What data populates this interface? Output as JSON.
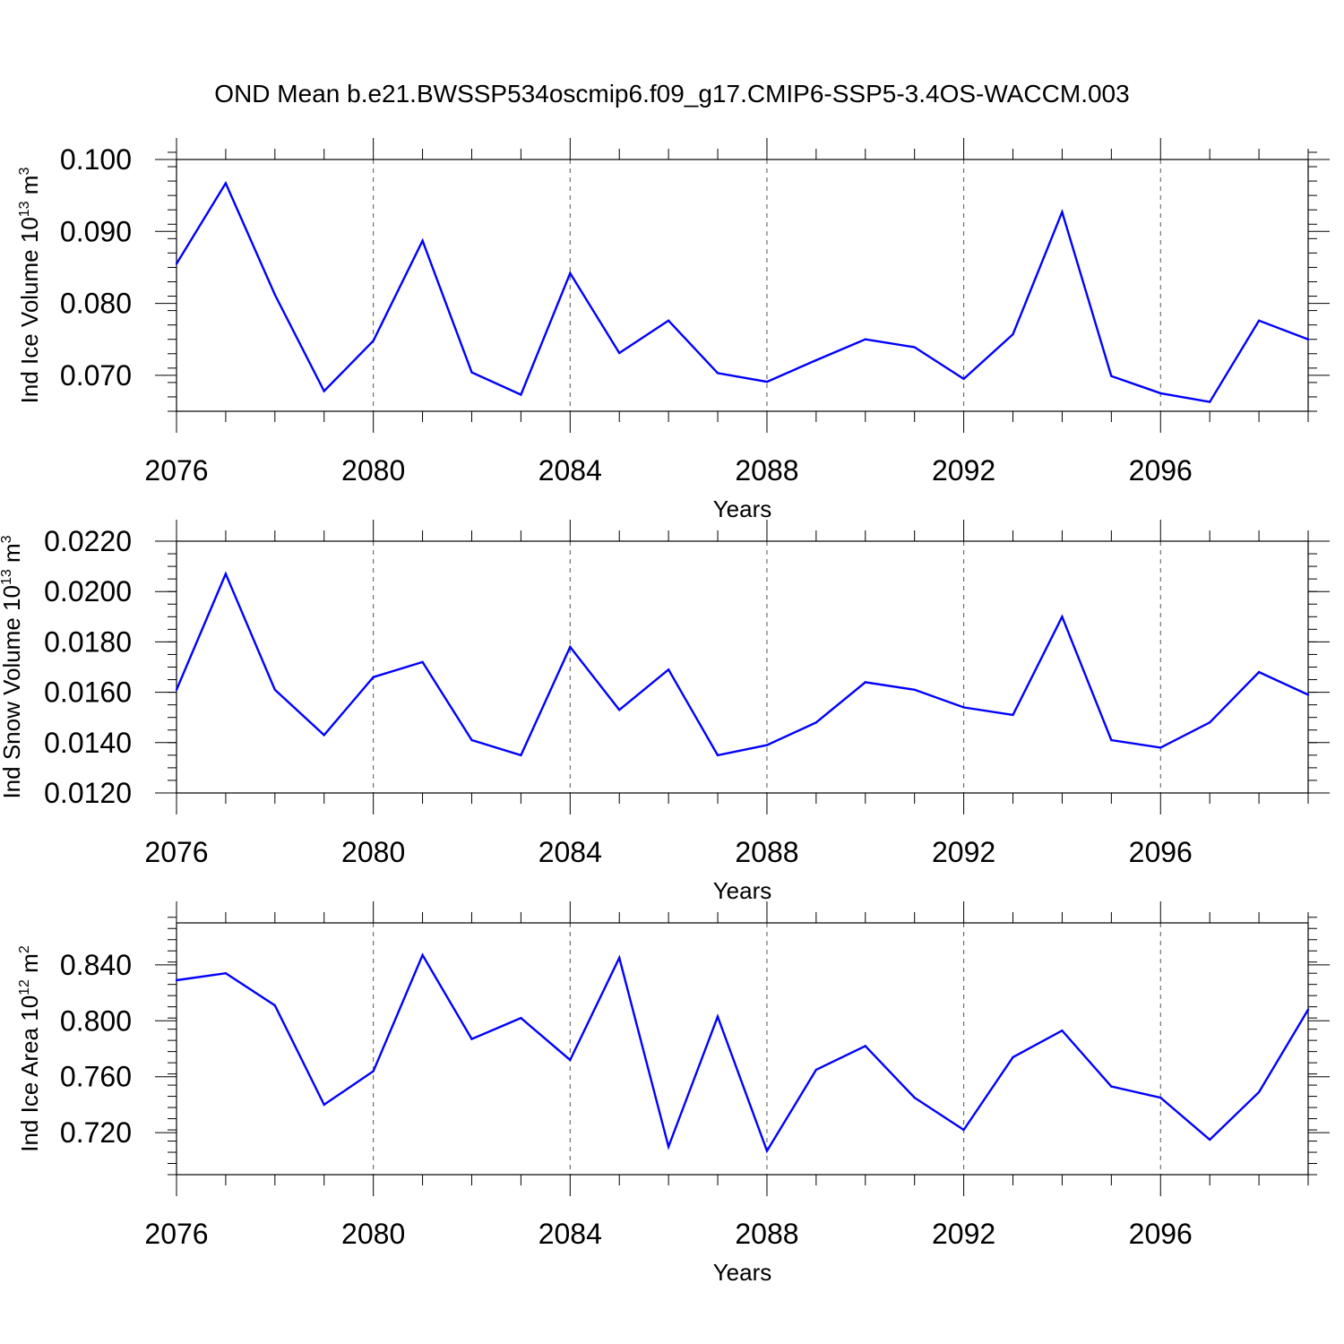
{
  "title": "OND Mean b.e21.BWSSP534oscmip6.f09_g17.CMIP6-SSP5-3.4OS-WACCM.003",
  "colors": {
    "series": "#0000ff",
    "axes": "#000000",
    "grid": "#555555"
  },
  "chart_data": [
    {
      "type": "line",
      "title": "",
      "xlabel": "Years",
      "ylabel": {
        "prefix": "Ind Ice Volume 10",
        "exp": "13",
        "unit": " m",
        "unit_exp": "3"
      },
      "x": [
        2076,
        2077,
        2078,
        2079,
        2080,
        2081,
        2082,
        2083,
        2084,
        2085,
        2086,
        2087,
        2088,
        2089,
        2090,
        2091,
        2092,
        2093,
        2094,
        2095,
        2096,
        2097,
        2098,
        2099
      ],
      "values": [
        0.0855,
        0.0967,
        0.0812,
        0.0678,
        0.0748,
        0.0887,
        0.0704,
        0.0673,
        0.0842,
        0.0731,
        0.0776,
        0.0703,
        0.0691,
        0.0721,
        0.075,
        0.0739,
        0.0695,
        0.0757,
        0.0927,
        0.0699,
        0.0675,
        0.0663,
        0.0776,
        0.075
      ],
      "xlim": [
        2076,
        2099
      ],
      "ylim": [
        0.065,
        0.1
      ],
      "xticks": [
        2076,
        2080,
        2084,
        2088,
        2092,
        2096
      ],
      "xtick_labels": [
        "2076",
        "2080",
        "2084",
        "2088",
        "2092",
        "2096"
      ],
      "yticks": [
        0.07,
        0.08,
        0.09,
        0.1
      ],
      "ytick_labels": [
        "0.070",
        "0.080",
        "0.090",
        "0.100"
      ],
      "yminor_step": 0.002,
      "grid": "x-dashed"
    },
    {
      "type": "line",
      "title": "",
      "xlabel": "Years",
      "ylabel": {
        "prefix": "Ind Snow Volume 10",
        "exp": "13",
        "unit": " m",
        "unit_exp": "3"
      },
      "x": [
        2076,
        2077,
        2078,
        2079,
        2080,
        2081,
        2082,
        2083,
        2084,
        2085,
        2086,
        2087,
        2088,
        2089,
        2090,
        2091,
        2092,
        2093,
        2094,
        2095,
        2096,
        2097,
        2098,
        2099
      ],
      "values": [
        0.0161,
        0.0207,
        0.0161,
        0.0143,
        0.0166,
        0.0172,
        0.0141,
        0.0135,
        0.0178,
        0.0153,
        0.0169,
        0.0135,
        0.0139,
        0.0148,
        0.0164,
        0.0161,
        0.0154,
        0.0151,
        0.019,
        0.0141,
        0.0138,
        0.0148,
        0.0168,
        0.0159
      ],
      "xlim": [
        2076,
        2099
      ],
      "ylim": [
        0.012,
        0.022
      ],
      "xticks": [
        2076,
        2080,
        2084,
        2088,
        2092,
        2096
      ],
      "xtick_labels": [
        "2076",
        "2080",
        "2084",
        "2088",
        "2092",
        "2096"
      ],
      "yticks": [
        0.012,
        0.014,
        0.016,
        0.018,
        0.02,
        0.022
      ],
      "ytick_labels": [
        "0.0120",
        "0.0140",
        "0.0160",
        "0.0180",
        "0.0200",
        "0.0220"
      ],
      "yminor_step": 0.0005,
      "grid": "x-dashed"
    },
    {
      "type": "line",
      "title": "",
      "xlabel": "Years",
      "ylabel": {
        "prefix": "Ind Ice Area 10",
        "exp": "12",
        "unit": " m",
        "unit_exp": "2"
      },
      "x": [
        2076,
        2077,
        2078,
        2079,
        2080,
        2081,
        2082,
        2083,
        2084,
        2085,
        2086,
        2087,
        2088,
        2089,
        2090,
        2091,
        2092,
        2093,
        2094,
        2095,
        2096,
        2097,
        2098,
        2099
      ],
      "values": [
        0.829,
        0.834,
        0.811,
        0.74,
        0.764,
        0.847,
        0.787,
        0.802,
        0.772,
        0.845,
        0.71,
        0.803,
        0.707,
        0.765,
        0.782,
        0.745,
        0.722,
        0.774,
        0.793,
        0.753,
        0.745,
        0.715,
        0.749,
        0.808
      ],
      "xlim": [
        2076,
        2099
      ],
      "ylim": [
        0.69,
        0.87
      ],
      "xticks": [
        2076,
        2080,
        2084,
        2088,
        2092,
        2096
      ],
      "xtick_labels": [
        "2076",
        "2080",
        "2084",
        "2088",
        "2092",
        "2096"
      ],
      "yticks": [
        0.72,
        0.76,
        0.8,
        0.84
      ],
      "ytick_labels": [
        "0.720",
        "0.760",
        "0.800",
        "0.840"
      ],
      "yminor_step": 0.008,
      "grid": "x-dashed"
    }
  ]
}
